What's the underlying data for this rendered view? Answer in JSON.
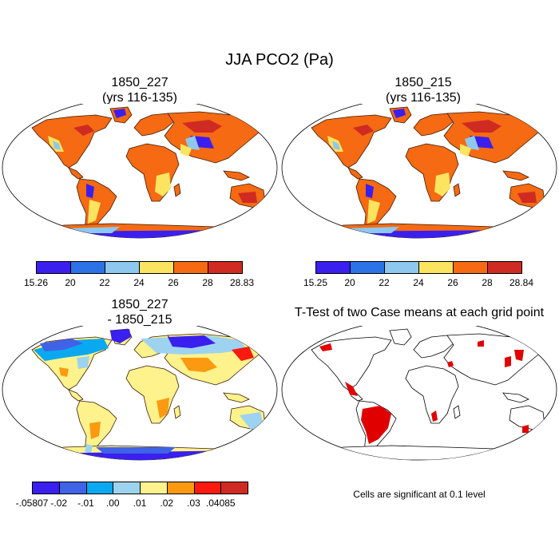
{
  "title": "JJA PCO2 (Pa)",
  "panels": [
    {
      "id": "p1",
      "title_line1": "1850_227",
      "title_line2": "(yrs 116-135)"
    },
    {
      "id": "p2",
      "title_line1": "1850_215",
      "title_line2": "(yrs 116-135)"
    },
    {
      "id": "p3",
      "title_line1": "1850_227",
      "title_line2": "- 1850_215"
    },
    {
      "id": "p4",
      "title_line1": "T-Test of two Case means at each grid point",
      "title_line2": ""
    }
  ],
  "colorbar1": {
    "colors": [
      "#3a1fef",
      "#2d72e6",
      "#8ec8ee",
      "#fbe45f",
      "#f56a12",
      "#cf2b22"
    ],
    "labels": [
      "15.26",
      "20",
      "22",
      "24",
      "26",
      "28",
      "28.83"
    ]
  },
  "colorbar2": {
    "colors": [
      "#3a1fef",
      "#2d72e6",
      "#8ec8ee",
      "#fbe45f",
      "#f56a12",
      "#cf2b22"
    ],
    "labels": [
      "15.25",
      "20",
      "22",
      "24",
      "26",
      "28",
      "28.84"
    ]
  },
  "colorbar3": {
    "colors": [
      "#3a1fef",
      "#3f62e6",
      "#0aa8f0",
      "#9dd3f0",
      "#fdf28b",
      "#fb9a10",
      "#fb1a10",
      "#cf2b22"
    ],
    "labels": [
      "-.05807",
      "-.02",
      "-.01",
      ".00",
      ".01",
      ".02",
      ".03",
      ".04085"
    ]
  },
  "significance_color": "#e00000",
  "note": "Cells are significant at 0.1 level"
}
